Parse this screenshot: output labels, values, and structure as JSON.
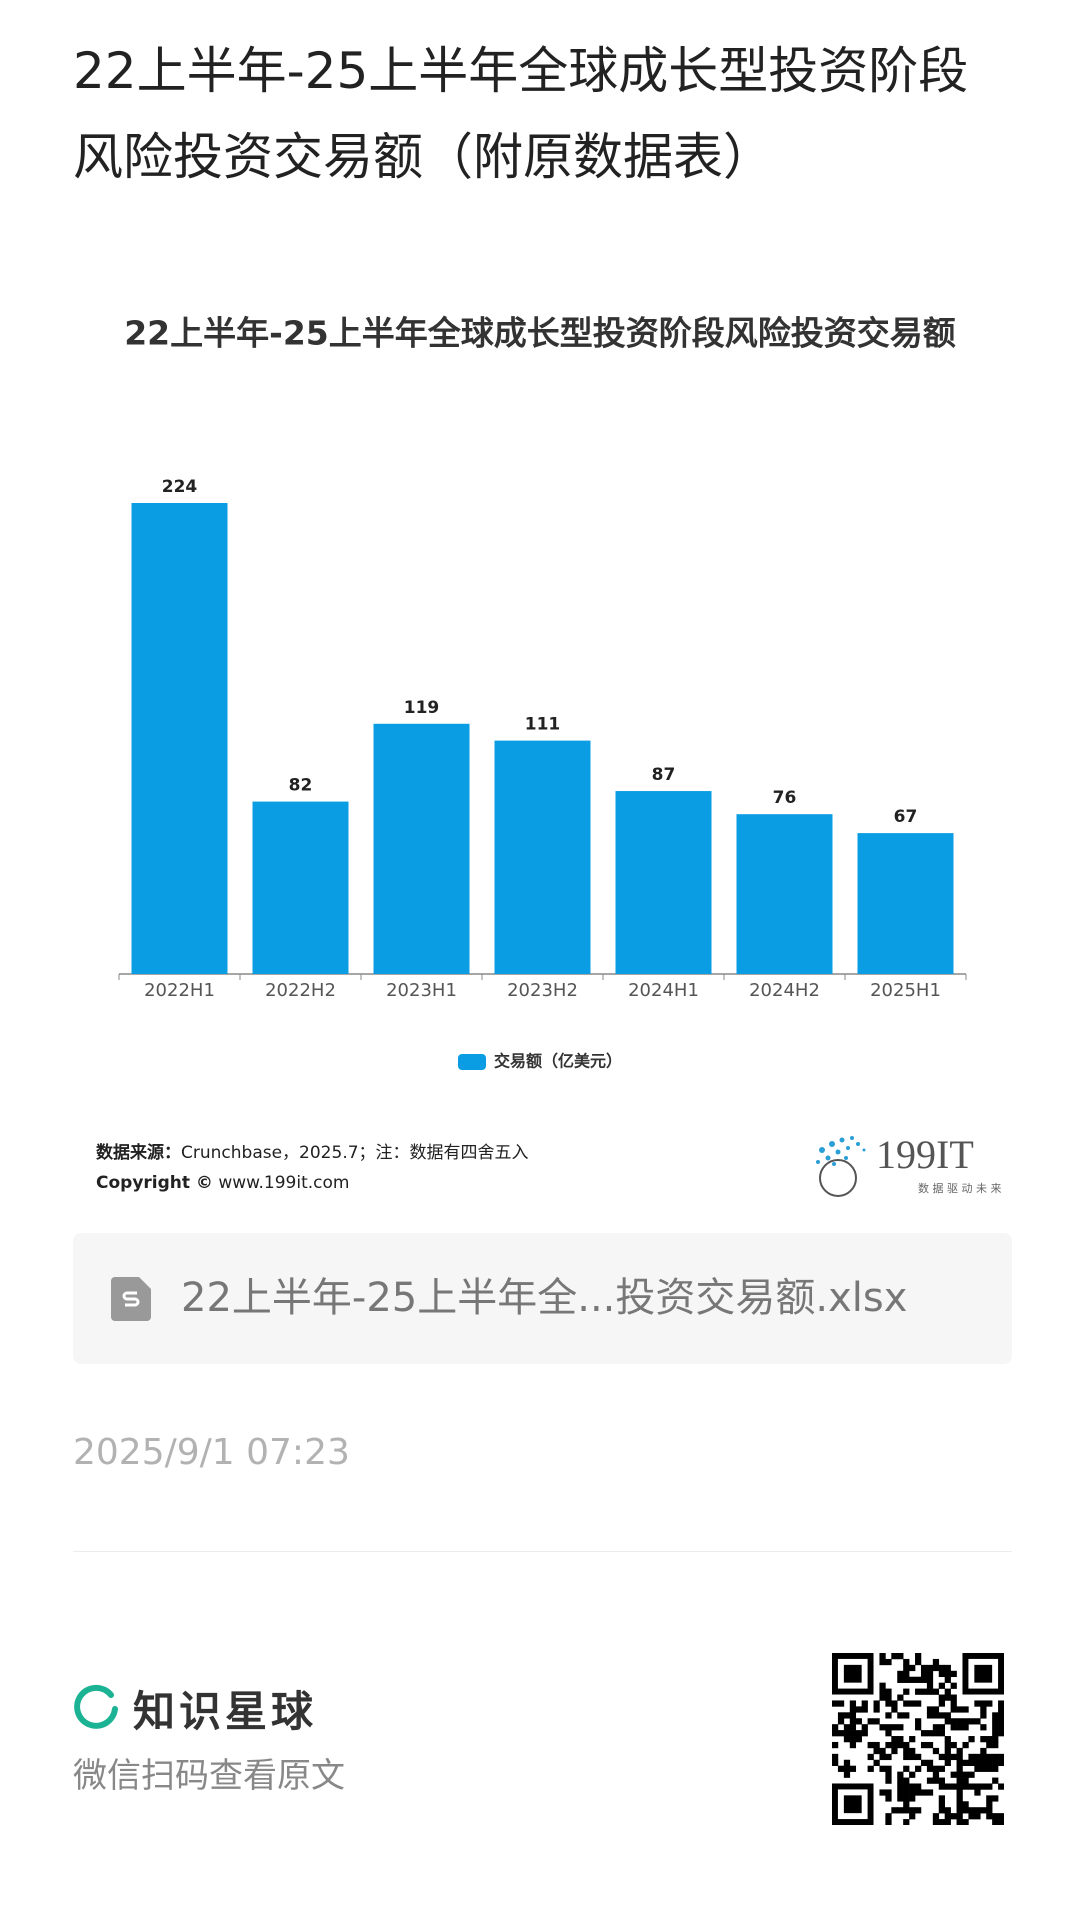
{
  "page_title": "22上半年-25上半年全球成长型投资阶段风险投资交易额（附原数据表）",
  "chart_data": {
    "type": "bar",
    "title": "22上半年-25上半年全球成长型投资阶段风险投资交易额",
    "categories": [
      "2022H1",
      "2022H2",
      "2023H1",
      "2023H2",
      "2024H1",
      "2024H2",
      "2025H1"
    ],
    "series": [
      {
        "name": "交易额（亿美元）",
        "color": "#0a9de3",
        "values": [
          224,
          82,
          119,
          111,
          87,
          76,
          67
        ]
      }
    ],
    "legend": "bottom"
  },
  "source": {
    "label": "数据来源：",
    "text": "Crunchbase，2025.7；注：数据有四舍五入",
    "copyright_label": "Copyright ©",
    "copyright_text": "www.199it.com"
  },
  "logo": {
    "name": "199IT",
    "slogan": "数 据 驱 动 未 来"
  },
  "attachment": {
    "file_name": "22上半年-25上半年全...投资交易额.xlsx"
  },
  "date": "2025/9/1 07:23",
  "footer": {
    "brand": "知识星球",
    "hint": "微信扫码查看原文"
  }
}
